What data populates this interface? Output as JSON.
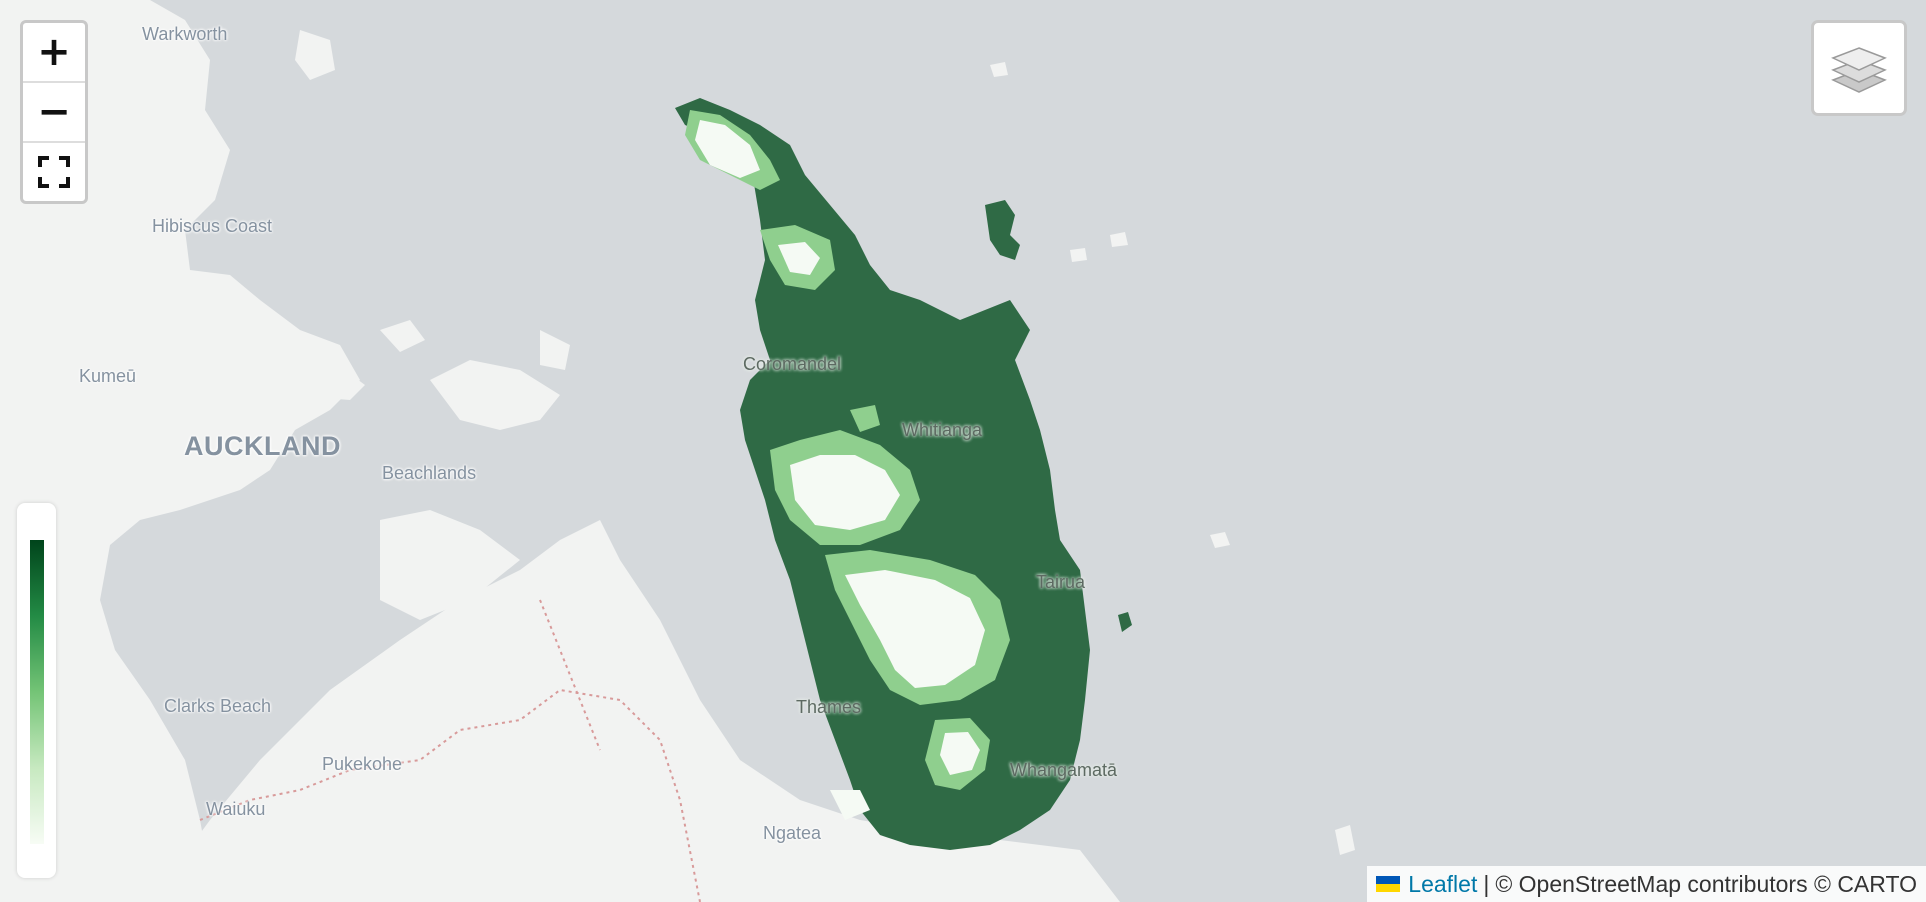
{
  "map": {
    "places": [
      {
        "id": "warkworth",
        "label": "Warkworth"
      },
      {
        "id": "hibiscus",
        "label": "Hibiscus Coast"
      },
      {
        "id": "kumeu",
        "label": "Kumeū"
      },
      {
        "id": "auckland",
        "label": "AUCKLAND"
      },
      {
        "id": "beachlands",
        "label": "Beachlands"
      },
      {
        "id": "clarks",
        "label": "Clarks Beach"
      },
      {
        "id": "pukekohe",
        "label": "Pukekohe"
      },
      {
        "id": "waiuku",
        "label": "Waiuku"
      },
      {
        "id": "ngatea",
        "label": "Ngatea"
      },
      {
        "id": "coromandel",
        "label": "Coromandel"
      },
      {
        "id": "whitianga",
        "label": "Whitianga"
      },
      {
        "id": "tairua",
        "label": "Tairua"
      },
      {
        "id": "thames",
        "label": "Thames"
      },
      {
        "id": "whangamata",
        "label": "Whangamatā"
      }
    ]
  },
  "controls": {
    "zoom_in_symbol": "+",
    "zoom_out_symbol": "−",
    "fullscreen_icon": "fullscreen-icon",
    "layers_icon": "layers-icon"
  },
  "legend": {
    "colors": [
      "#00441b",
      "#238b45",
      "#74c476",
      "#c7e9c0",
      "#f7fcf5"
    ]
  },
  "attribution": {
    "leaflet": "Leaflet",
    "separator": "|",
    "text": "© OpenStreetMap contributors © CARTO"
  },
  "colors": {
    "water": "#d5d9dc",
    "land": "#f2f3f2",
    "choropleth_dark": "#2f6a45",
    "choropleth_mid": "#8fcf8e",
    "choropleth_light": "#f5faf4"
  }
}
